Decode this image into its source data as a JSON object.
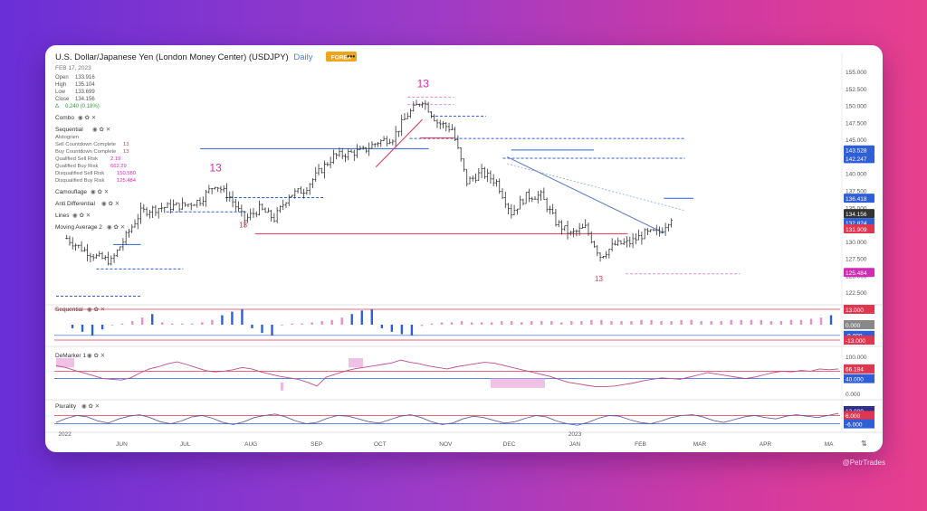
{
  "header": {
    "title": "U.S. Dollar/Japanese Yen (London Money Center) (USDJPY)",
    "interval": "Daily",
    "badge": "FOREX",
    "more": "•••",
    "date": "FEB 17, 2023"
  },
  "ohlc": [
    {
      "label": "Open",
      "value": "133.916"
    },
    {
      "label": "High",
      "value": "135.104"
    },
    {
      "label": "Low",
      "value": "133.699"
    },
    {
      "label": "Close",
      "value": "134.156"
    }
  ],
  "change": {
    "label": "Δ",
    "value": "0.240 (0.18%)"
  },
  "studies": {
    "combo": "Combo",
    "sequential": "Sequential",
    "sequential_lines": [
      {
        "label": "Alstogram",
        "value": ""
      },
      {
        "label": "Sell Countdown Complete",
        "value": "13"
      },
      {
        "label": "Buy Countdown Complete",
        "value": "13"
      },
      {
        "label": "Qualified Sell Risk",
        "value": "2.19"
      },
      {
        "label": "Qualified Buy Risk",
        "value": "662.29"
      },
      {
        "label": "Disqualified Sell Risk",
        "value": "150.580"
      },
      {
        "label": "Disqualified Buy Risk",
        "value": "125.484"
      }
    ],
    "camouflage": "Camouflage",
    "anti_differential": "Anti Differential",
    "lines": "Lines",
    "moving_average": "Moving Average 2"
  },
  "panes": {
    "sequential": "Sequential",
    "demarker": "DeMarker 1",
    "plurality": "Plurality"
  },
  "watermark": "@PetrTrades",
  "colors": {
    "up": "#2b2b2b",
    "blue": "#2f5fd6",
    "red": "#e0364f",
    "magenta": "#d02bb4",
    "pink": "#e68fc8",
    "green": "#2aa63a"
  },
  "chart_data": [
    {
      "type": "line",
      "name": "price",
      "x": [
        "2022-05-06",
        "2022-05-13",
        "2022-05-20",
        "2022-05-27",
        "2022-06-03",
        "2022-06-10",
        "2022-06-17",
        "2022-06-24",
        "2022-07-01",
        "2022-07-08",
        "2022-07-15",
        "2022-07-22",
        "2022-07-29",
        "2022-08-05",
        "2022-08-12",
        "2022-08-19",
        "2022-08-26",
        "2022-09-02",
        "2022-09-09",
        "2022-09-16",
        "2022-09-23",
        "2022-09-30",
        "2022-10-07",
        "2022-10-14",
        "2022-10-21",
        "2022-10-28",
        "2022-11-04",
        "2022-11-11",
        "2022-11-18",
        "2022-11-25",
        "2022-12-02",
        "2022-12-09",
        "2022-12-16",
        "2022-12-23",
        "2022-12-30",
        "2023-01-06",
        "2023-01-13",
        "2023-01-20",
        "2023-01-27",
        "2023-02-03",
        "2023-02-10",
        "2023-02-17"
      ],
      "values": [
        130.5,
        129.0,
        127.8,
        127.1,
        130.8,
        134.4,
        134.9,
        135.2,
        135.4,
        136.1,
        138.5,
        136.6,
        133.2,
        134.9,
        133.4,
        136.9,
        137.6,
        140.2,
        142.6,
        143.0,
        143.4,
        144.7,
        145.3,
        148.7,
        150.9,
        147.6,
        146.6,
        138.8,
        140.2,
        138.8,
        134.3,
        136.7,
        136.8,
        132.9,
        131.1,
        132.1,
        127.9,
        129.6,
        129.9,
        131.2,
        131.4,
        134.2
      ],
      "ylim": [
        121.0,
        156.0
      ],
      "y_ticks": [
        "155.000",
        "152.500",
        "150.000",
        "147.500",
        "145.000",
        "142.500",
        "140.000",
        "137.500",
        "135.000",
        "132.500",
        "130.000",
        "127.500",
        "125.000",
        "122.500"
      ],
      "x_ticks": [
        "2022",
        "JUN",
        "JUL",
        "AUG",
        "SEP",
        "OCT",
        "NOV",
        "DEC",
        "2023",
        "JAN",
        "FEB",
        "MAR",
        "APR",
        "MA"
      ],
      "annotations": [
        {
          "text": "13",
          "x": "2022-07-15",
          "color": "#d02bb4"
        },
        {
          "text": "13",
          "x": "2022-07-29",
          "color": "#e0364f"
        },
        {
          "text": "13",
          "x": "2022-10-21",
          "color": "#d02bb4"
        },
        {
          "text": "13",
          "x": "2023-01-13",
          "color": "#e0364f"
        }
      ],
      "price_labels": [
        {
          "value": "143.528",
          "color": "#2f5fd6"
        },
        {
          "value": "142.247",
          "color": "#2f5fd6"
        },
        {
          "value": "136.418",
          "color": "#2f5fd6"
        },
        {
          "value": "134.156",
          "color": "#333333"
        },
        {
          "value": "132.824",
          "color": "#2f5fd6"
        },
        {
          "value": "131.909",
          "color": "#e0364f"
        },
        {
          "value": "125.484",
          "color": "#d02bb4"
        }
      ]
    },
    {
      "type": "bar",
      "name": "sequential",
      "y_labels": [
        {
          "value": "13.000",
          "color": "#e0364f"
        },
        {
          "value": "0.000",
          "color": "#888888"
        },
        {
          "value": "-9.000",
          "color": "#2f5fd6"
        },
        {
          "value": "-13.000",
          "color": "#e0364f"
        }
      ],
      "values": [
        -3,
        -6,
        -9,
        -4,
        0,
        1,
        3,
        6,
        9,
        2,
        1,
        1,
        1,
        2,
        4,
        8,
        11,
        13,
        -3,
        -7,
        -9,
        0,
        1,
        1,
        2,
        3,
        4,
        6,
        9,
        12,
        13,
        -3,
        -6,
        -8,
        -9,
        -1,
        1,
        2,
        2,
        3,
        2,
        2,
        2,
        3,
        3,
        2,
        3,
        3,
        3,
        2,
        3,
        3,
        4,
        4,
        3,
        3,
        3,
        4,
        4,
        3,
        3,
        4,
        4,
        3,
        3,
        3,
        4,
        4,
        4,
        4,
        3,
        3,
        4,
        4,
        5,
        6,
        8
      ]
    },
    {
      "type": "line",
      "name": "demarker",
      "y_labels": [
        {
          "value": "100.000",
          "color": "#333333"
        },
        {
          "value": "66.184",
          "color": "#e0364f"
        },
        {
          "value": "40.000",
          "color": "#2f5fd6"
        },
        {
          "value": "0.000",
          "color": "#333333"
        }
      ],
      "ylim": [
        0,
        100
      ],
      "values": [
        75,
        70,
        62,
        55,
        48,
        40,
        38,
        36,
        42,
        55,
        66,
        72,
        80,
        85,
        78,
        70,
        62,
        58,
        60,
        64,
        70,
        66,
        58,
        52,
        46,
        42,
        38,
        30,
        20,
        44,
        52,
        60,
        66,
        70,
        74,
        78,
        82,
        90,
        84,
        80,
        74,
        70,
        66,
        72,
        76,
        80,
        84,
        82,
        76,
        70,
        64,
        58,
        52,
        46,
        38,
        30,
        26,
        22,
        18,
        18,
        20,
        24,
        28,
        34,
        38,
        42,
        40,
        38,
        44,
        50,
        56,
        52,
        48,
        44,
        40,
        44,
        50,
        56,
        60,
        58,
        62,
        60,
        66,
        64,
        66
      ]
    },
    {
      "type": "line",
      "name": "plurality",
      "y_labels": [
        {
          "value": "13.000",
          "color": "#333333"
        },
        {
          "value": "6.000",
          "color": "#e0364f"
        },
        {
          "value": "-6.000",
          "color": "#2f5fd6"
        }
      ],
      "ylim": [
        -13,
        13
      ],
      "values": [
        -4,
        2,
        6,
        4,
        -2,
        -5,
        1,
        5,
        7,
        3,
        -3,
        -6,
        -2,
        4,
        6,
        2,
        -4,
        -7,
        -3,
        3,
        6,
        8,
        4,
        -2,
        -6,
        -4,
        2,
        6,
        5,
        1,
        -3,
        -5,
        0,
        5,
        7,
        3,
        -3,
        -7,
        -5,
        1,
        5,
        3,
        -1,
        -5,
        -3,
        2,
        6,
        4,
        -2,
        -6,
        -8,
        -4,
        2,
        6,
        5,
        0,
        -4,
        -6,
        -2,
        3,
        6,
        7,
        4,
        -1,
        -4,
        0,
        4,
        6,
        3,
        1,
        5,
        7,
        5,
        3,
        6,
        9
      ]
    }
  ]
}
